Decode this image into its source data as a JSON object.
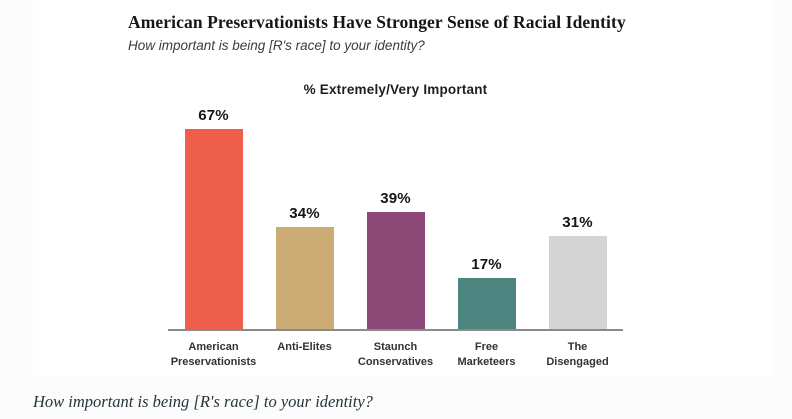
{
  "page": {
    "background": "#fcfcfc",
    "caption": "How important is being [R's race] to your identity?"
  },
  "figure": {
    "background": "#ffffff",
    "title": "American Preservationists Have Stronger Sense of Racial Identity",
    "subtitle": "How important is being [R's race] to your identity?"
  },
  "chart_data": {
    "type": "bar",
    "title": "% Extremely/Very Important",
    "categories": [
      "American Preservationists",
      "Anti-Elites",
      "Staunch Conservatives",
      "Free Marketeers",
      "The Disengaged"
    ],
    "category_labels": [
      "American\nPreservationists",
      "Anti-Elites",
      "Staunch\nConservatives",
      "Free\nMarketeers",
      "The\nDisengaged"
    ],
    "values": [
      67,
      34,
      39,
      17,
      31
    ],
    "value_labels": [
      "67%",
      "34%",
      "39%",
      "17%",
      "31%"
    ],
    "bar_colors": [
      "#ee5e4b",
      "#ccac74",
      "#8c4877",
      "#4c8480",
      "#d4d4d4"
    ],
    "axis_color": "#8a8a8a",
    "xlabel": "",
    "ylabel": "",
    "ylim": [
      0,
      70
    ],
    "grid": false,
    "legend": false
  }
}
